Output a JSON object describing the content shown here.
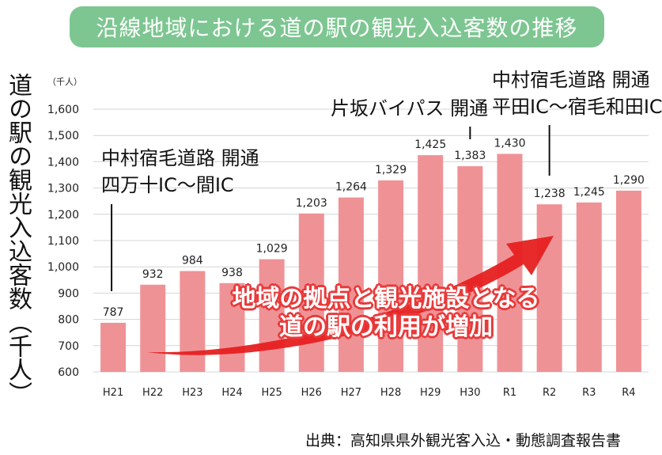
{
  "title": "沿線地域における道の駅の観光入込客数の推移",
  "unit_label": "（千人）",
  "source": "出典：高知県県外観光客入込・動態調査報告書",
  "annotations": {
    "a": {
      "line1": "中村宿毛道路 開通",
      "line2": "四万十IC～間IC"
    },
    "b": {
      "line1": "片坂バイパス 開通"
    },
    "c": {
      "line1": "中村宿毛道路 開通",
      "line2": "平田IC～宿毛和田IC"
    }
  },
  "callout": {
    "line1": "地域の拠点と観光施設となる",
    "line2": "道の駅の利用が増加"
  },
  "colors": {
    "bar": "#ef9296",
    "title_bg": "#7dc691",
    "arrow": "#e62020"
  },
  "chart_data": {
    "type": "bar",
    "title": "沿線地域における道の駅の観光入込客数の推移",
    "ylabel": "道の駅の観光入込客数（千人）",
    "xlabel": "",
    "categories": [
      "H21",
      "H22",
      "H23",
      "H24",
      "H25",
      "H26",
      "H27",
      "H28",
      "H29",
      "H30",
      "R1",
      "R2",
      "R3",
      "R4"
    ],
    "values": [
      787,
      932,
      984,
      938,
      1029,
      1203,
      1264,
      1329,
      1425,
      1383,
      1430,
      1238,
      1245,
      1290
    ],
    "value_labels": [
      "787",
      "932",
      "984",
      "938",
      "1,029",
      "1,203",
      "1,264",
      "1,329",
      "1,425",
      "1,383",
      "1,430",
      "1,238",
      "1,245",
      "1,290"
    ],
    "ylim": [
      600,
      1600
    ],
    "yticks": [
      600,
      700,
      800,
      900,
      1000,
      1100,
      1200,
      1300,
      1400,
      1500,
      1600
    ],
    "ytick_labels": [
      "600",
      "700",
      "800",
      "900",
      "1,000",
      "1,100",
      "1,200",
      "1,300",
      "1,400",
      "1,500",
      "1,600"
    ],
    "grid": true,
    "legend": "none"
  }
}
